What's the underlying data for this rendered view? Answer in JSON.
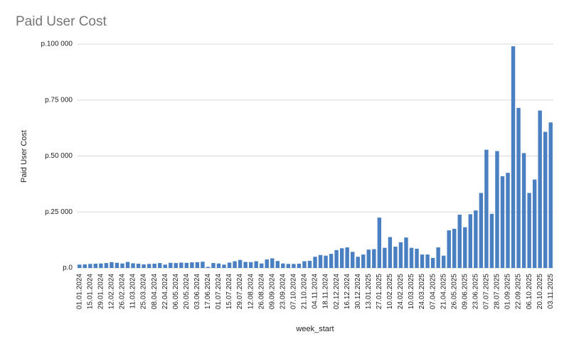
{
  "chart_data": {
    "type": "bar",
    "title": "Paid User Cost",
    "ylabel": "Paid User Cost",
    "xlabel": "week_start",
    "color": "#4a7fc1",
    "grid": true,
    "ylim": [
      0,
      100000
    ],
    "yticks": [
      {
        "value": 0,
        "label": "p.0"
      },
      {
        "value": 25000,
        "label": "p.25 000"
      },
      {
        "value": 50000,
        "label": "p.50 000"
      },
      {
        "value": 75000,
        "label": "p.75 000"
      },
      {
        "value": 100000,
        "label": "p.100 000"
      }
    ],
    "categories": [
      "01.01.2024",
      null,
      "15.01.2024",
      null,
      "29.01.2024",
      null,
      "12.02.2024",
      null,
      "26.02.2024",
      null,
      "11.03.2024",
      null,
      "25.03.2024",
      null,
      "08.04.2024",
      null,
      "22.04.2024",
      null,
      "06.05.2024",
      null,
      "20.05.2024",
      null,
      "03.06.2024",
      null,
      "17.06.2024",
      null,
      "01.07.2024",
      null,
      "15.07.2024",
      null,
      "29.07.2024",
      null,
      "12.08.2024",
      null,
      "26.08.2024",
      null,
      "09.09.2024",
      null,
      "23.09.2024",
      null,
      "07.10.2024",
      null,
      "21.10.2024",
      null,
      "04.11.2024",
      null,
      "18.11.2024",
      null,
      "02.12.2024",
      null,
      "16.12.2024",
      null,
      "30.12.2024",
      null,
      "13.01.2025",
      null,
      "27.01.2025",
      null,
      "10.02.2025",
      null,
      "24.02.2025",
      null,
      "10.03.2025",
      null,
      "24.03.2025",
      null,
      "07.04.2025",
      null,
      "21.04.2025",
      null,
      "26.05.2025",
      null,
      "09.06.2025",
      null,
      "23.06.2025",
      null,
      "07.07.2025",
      null,
      "28.07.2025",
      null,
      "01.09.2025",
      null,
      "22.09.2025",
      null,
      "06.10.2025",
      null,
      "20.10.2025",
      null,
      "03.11.2025"
    ],
    "values": [
      1500,
      1600,
      1800,
      1900,
      2000,
      2200,
      2600,
      2300,
      2000,
      2700,
      2100,
      1900,
      1600,
      1800,
      1900,
      2200,
      1500,
      2300,
      2200,
      2400,
      2300,
      2500,
      2600,
      2800,
      500,
      2200,
      2000,
      1500,
      2400,
      3000,
      3600,
      2700,
      2600,
      3000,
      2000,
      3800,
      4300,
      3100,
      2000,
      1800,
      1800,
      1900,
      3000,
      3200,
      5000,
      5800,
      5500,
      6300,
      8000,
      8800,
      9200,
      7200,
      5000,
      6000,
      8200,
      8400,
      22500,
      9000,
      13800,
      9500,
      11500,
      13600,
      9000,
      8600,
      6000,
      6000,
      4500,
      9200,
      5500,
      16800,
      17500,
      23800,
      18200,
      24000,
      25700,
      33500,
      52800,
      24200,
      52200,
      41000,
      42500,
      99000,
      71500,
      51300,
      33500,
      39500,
      70300,
      60800,
      65000
    ]
  }
}
